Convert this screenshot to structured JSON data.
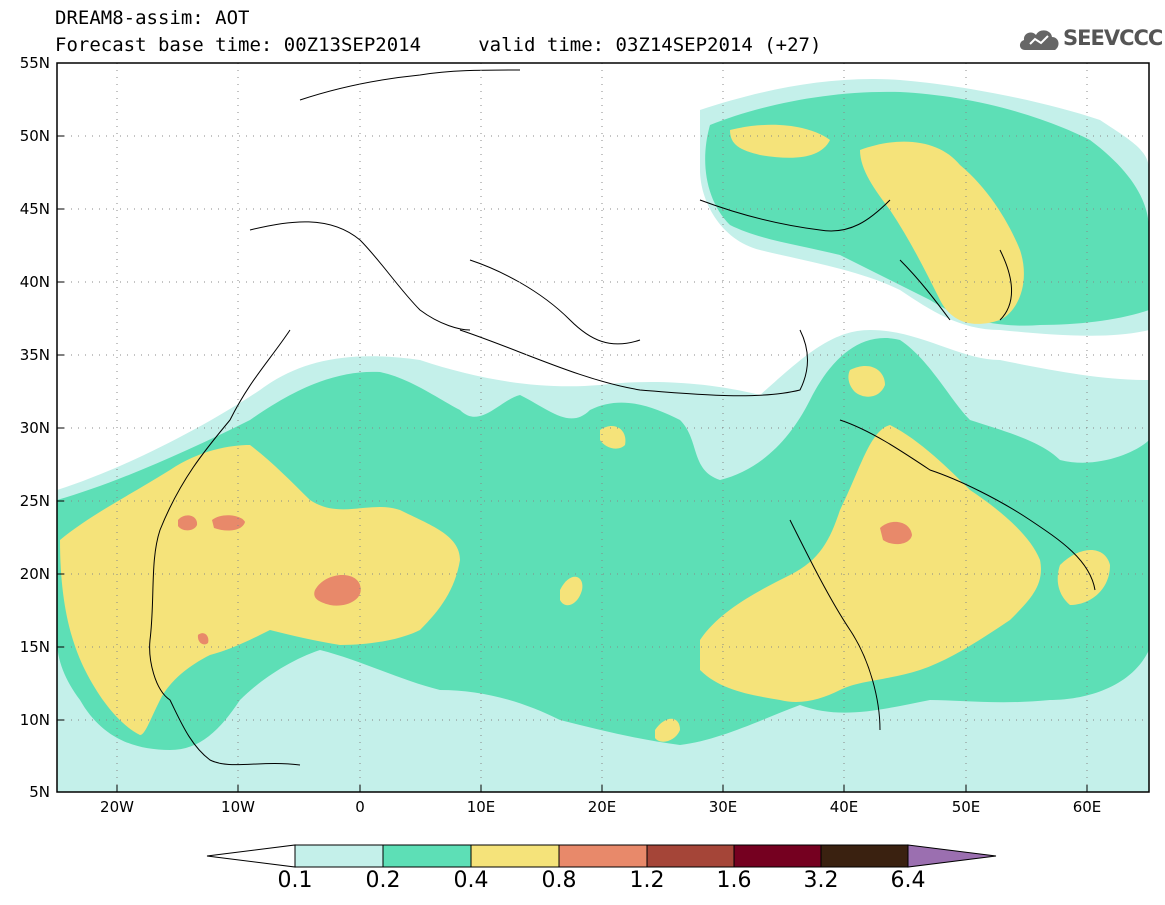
{
  "header": {
    "line1": "DREAM8-assim: AOT",
    "line2": "Forecast base time: 00Z13SEP2014     valid time: 03Z14SEP2014 (+27)",
    "logo": "SEEVCCC"
  },
  "map": {
    "lon_range": [
      -25,
      65
    ],
    "lat_range": [
      5,
      55
    ],
    "lon_ticks": [
      "20W",
      "10W",
      "0",
      "10E",
      "20E",
      "30E",
      "40E",
      "50E",
      "60E"
    ],
    "lat_ticks": [
      "55N",
      "50N",
      "45N",
      "40N",
      "35N",
      "30N",
      "25N",
      "20N",
      "15N",
      "10N",
      "5N"
    ],
    "grid": "dotted"
  },
  "colorbar": {
    "labels": [
      "0.1",
      "0.2",
      "0.4",
      "0.8",
      "1.2",
      "1.6",
      "3.2",
      "6.4"
    ],
    "colors": [
      "#ffffff",
      "#c4f0ea",
      "#5ddfb6",
      "#f5e37a",
      "#e8896a",
      "#a54538",
      "#750020",
      "#3a2110",
      "#9b6fb0"
    ]
  },
  "colors": {
    "level1": "#c4f0ea",
    "level2": "#5ddfb6",
    "level3": "#f5e37a",
    "level4": "#e8896a"
  }
}
